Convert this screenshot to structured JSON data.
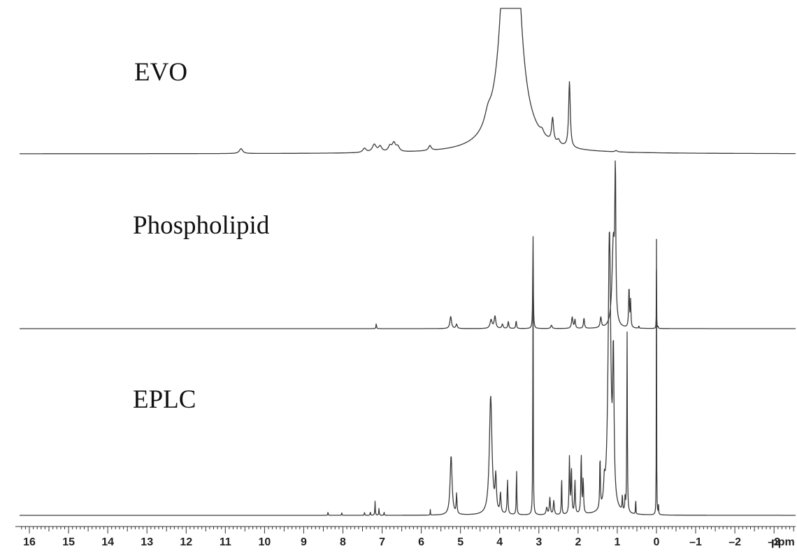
{
  "chart_data": {
    "type": "line",
    "title": "",
    "xlabel": "ppm",
    "ylabel": "",
    "xlim": [
      16.25,
      -3.55
    ],
    "x_axis_reversed": true,
    "x_ticks": [
      16,
      15,
      14,
      13,
      12,
      11,
      10,
      9,
      8,
      7,
      6,
      5,
      4,
      3,
      2,
      1,
      0,
      -1,
      -2,
      -3
    ],
    "x_tick_labels": [
      "16",
      "15",
      "14",
      "13",
      "12",
      "11",
      "10",
      "9",
      "8",
      "7",
      "6",
      "5",
      "4",
      "3",
      "2",
      "1",
      "0",
      "–1",
      "–2",
      "–3"
    ],
    "minor_ticks_per_unit": 10,
    "grid": false,
    "legend": "none",
    "line_color": "#3a3a3a",
    "series": [
      {
        "name": "EVO",
        "y_max": 1.0,
        "peaks": [
          {
            "x": 10.6,
            "h": 0.035,
            "w": 0.05
          },
          {
            "x": 7.45,
            "h": 0.03,
            "w": 0.05
          },
          {
            "x": 7.2,
            "h": 0.055,
            "w": 0.06
          },
          {
            "x": 7.05,
            "h": 0.04,
            "w": 0.05
          },
          {
            "x": 6.8,
            "h": 0.04,
            "w": 0.05
          },
          {
            "x": 6.7,
            "h": 0.06,
            "w": 0.05
          },
          {
            "x": 6.6,
            "h": 0.035,
            "w": 0.05
          },
          {
            "x": 5.78,
            "h": 0.035,
            "w": 0.04
          },
          {
            "x": 4.3,
            "h": 0.08,
            "w": 0.1
          },
          {
            "x": 3.72,
            "h": 3.2,
            "w": 0.18
          },
          {
            "x": 2.92,
            "h": 0.03,
            "w": 0.05
          },
          {
            "x": 2.65,
            "h": 0.17,
            "w": 0.03
          },
          {
            "x": 2.5,
            "h": 0.03,
            "w": 0.04
          },
          {
            "x": 2.22,
            "h": 0.47,
            "w": 0.025
          },
          {
            "x": 1.03,
            "h": 0.01,
            "w": 0.03
          }
        ]
      },
      {
        "name": "Phospholipid",
        "y_max": 1.0,
        "peaks": [
          {
            "x": 7.15,
            "h": 0.03,
            "w": 0.008
          },
          {
            "x": 5.25,
            "h": 0.07,
            "w": 0.025
          },
          {
            "x": 5.1,
            "h": 0.025,
            "w": 0.02
          },
          {
            "x": 4.22,
            "h": 0.05,
            "w": 0.03
          },
          {
            "x": 4.12,
            "h": 0.07,
            "w": 0.025
          },
          {
            "x": 3.93,
            "h": 0.025,
            "w": 0.02
          },
          {
            "x": 3.78,
            "h": 0.04,
            "w": 0.015
          },
          {
            "x": 3.58,
            "h": 0.045,
            "w": 0.012
          },
          {
            "x": 3.15,
            "h": 0.56,
            "w": 0.008
          },
          {
            "x": 2.68,
            "h": 0.02,
            "w": 0.02
          },
          {
            "x": 2.15,
            "h": 0.065,
            "w": 0.02
          },
          {
            "x": 2.08,
            "h": 0.05,
            "w": 0.015
          },
          {
            "x": 1.85,
            "h": 0.06,
            "w": 0.015
          },
          {
            "x": 1.42,
            "h": 0.06,
            "w": 0.02
          },
          {
            "x": 1.1,
            "h": 0.5,
            "w": 0.04
          },
          {
            "x": 1.05,
            "h": 0.95,
            "w": 0.012
          },
          {
            "x": 0.7,
            "h": 0.24,
            "w": 0.012
          },
          {
            "x": 0.66,
            "h": 0.15,
            "w": 0.01
          },
          {
            "x": 0.45,
            "h": 0.02,
            "w": 0.005
          },
          {
            "x": 0.0,
            "h": 0.34,
            "w": 0.004
          },
          {
            "x": -0.04,
            "h": 0.02,
            "w": 0.004
          }
        ]
      },
      {
        "name": "EPLC",
        "y_max": 1.0,
        "peaks": [
          {
            "x": 8.38,
            "h": 0.015,
            "w": 0.005
          },
          {
            "x": 8.03,
            "h": 0.012,
            "w": 0.005
          },
          {
            "x": 7.45,
            "h": 0.012,
            "w": 0.006
          },
          {
            "x": 7.3,
            "h": 0.015,
            "w": 0.006
          },
          {
            "x": 7.18,
            "h": 0.05,
            "w": 0.007
          },
          {
            "x": 7.08,
            "h": 0.025,
            "w": 0.007
          },
          {
            "x": 6.95,
            "h": 0.012,
            "w": 0.006
          },
          {
            "x": 5.77,
            "h": 0.02,
            "w": 0.004
          },
          {
            "x": 5.24,
            "h": 0.21,
            "w": 0.03
          },
          {
            "x": 5.1,
            "h": 0.07,
            "w": 0.012
          },
          {
            "x": 4.23,
            "h": 0.42,
            "w": 0.04
          },
          {
            "x": 4.1,
            "h": 0.12,
            "w": 0.02
          },
          {
            "x": 3.98,
            "h": 0.07,
            "w": 0.015
          },
          {
            "x": 3.8,
            "h": 0.12,
            "w": 0.012
          },
          {
            "x": 3.57,
            "h": 0.17,
            "w": 0.008
          },
          {
            "x": 3.15,
            "h": 0.96,
            "w": 0.006
          },
          {
            "x": 2.8,
            "h": 0.025,
            "w": 0.02
          },
          {
            "x": 2.72,
            "h": 0.06,
            "w": 0.015
          },
          {
            "x": 2.62,
            "h": 0.05,
            "w": 0.015
          },
          {
            "x": 2.42,
            "h": 0.14,
            "w": 0.008
          },
          {
            "x": 2.22,
            "h": 0.2,
            "w": 0.012
          },
          {
            "x": 2.17,
            "h": 0.16,
            "w": 0.012
          },
          {
            "x": 2.08,
            "h": 0.12,
            "w": 0.012
          },
          {
            "x": 1.92,
            "h": 0.21,
            "w": 0.012
          },
          {
            "x": 1.87,
            "h": 0.12,
            "w": 0.012
          },
          {
            "x": 1.44,
            "h": 0.19,
            "w": 0.01
          },
          {
            "x": 1.33,
            "h": 0.07,
            "w": 0.02
          },
          {
            "x": 1.2,
            "h": 1.0,
            "w": 0.04
          },
          {
            "x": 1.1,
            "h": 0.5,
            "w": 0.02
          },
          {
            "x": 0.87,
            "h": 0.06,
            "w": 0.008
          },
          {
            "x": 0.8,
            "h": 0.05,
            "w": 0.008
          },
          {
            "x": 0.75,
            "h": 0.65,
            "w": 0.008
          },
          {
            "x": 0.53,
            "h": 0.09,
            "w": 0.004
          },
          {
            "x": 0.0,
            "h": 0.98,
            "w": 0.004
          },
          {
            "x": -0.05,
            "h": 0.06,
            "w": 0.004
          }
        ]
      }
    ]
  },
  "labels": {
    "evo": "EVO",
    "phospholipid": "Phospholipid",
    "eplc": "EPLC",
    "unit": "ppm"
  }
}
